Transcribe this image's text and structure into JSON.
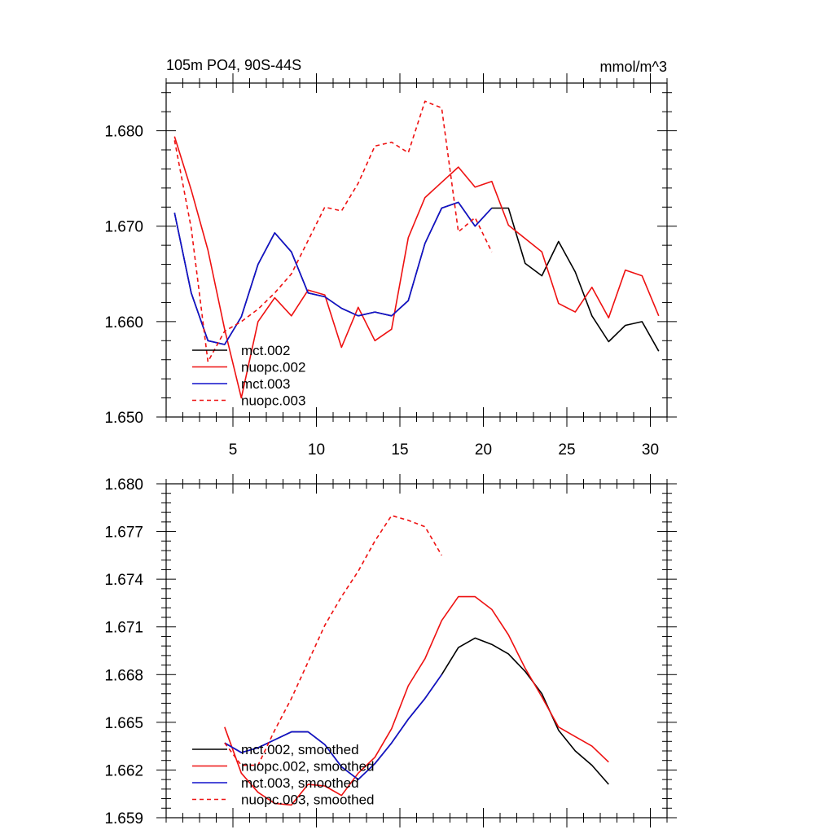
{
  "chart_data": [
    {
      "type": "line",
      "title": "105m PO4, 90S-44S",
      "units": "mmol/m^3",
      "xlim": [
        1,
        31
      ],
      "ylim": [
        1.65,
        1.685
      ],
      "x_ticks": [
        5,
        10,
        15,
        20,
        25,
        30
      ],
      "y_ticks": [
        1.65,
        1.66,
        1.67,
        1.68
      ],
      "y_tick_labels": [
        "1.650",
        "1.660",
        "1.670",
        "1.680"
      ],
      "legend_position": "bottom-left",
      "series": [
        {
          "name": "mct.002",
          "color": "#000000",
          "dash": "solid",
          "points": [
            [
              1.5,
              1.6714
            ],
            [
              2.5,
              1.663
            ],
            [
              3.5,
              1.658
            ],
            [
              4.5,
              1.6576
            ],
            [
              5.5,
              1.6605
            ],
            [
              6.5,
              1.666
            ],
            [
              7.5,
              1.6693
            ],
            [
              8.5,
              1.6673
            ],
            [
              9.5,
              1.663
            ],
            [
              10.5,
              1.6626
            ],
            [
              11.5,
              1.6614
            ],
            [
              12.5,
              1.6606
            ],
            [
              13.5,
              1.661
            ],
            [
              14.5,
              1.6606
            ],
            [
              15.5,
              1.6622
            ],
            [
              16.5,
              1.6682
            ],
            [
              17.5,
              1.6719
            ],
            [
              18.5,
              1.6725
            ],
            [
              19.5,
              1.67
            ],
            [
              20.5,
              1.6719
            ],
            [
              21.5,
              1.6719
            ],
            [
              22.5,
              1.6661
            ],
            [
              23.5,
              1.6648
            ],
            [
              24.5,
              1.6684
            ],
            [
              25.5,
              1.6652
            ],
            [
              26.5,
              1.6606
            ],
            [
              27.5,
              1.6579
            ],
            [
              28.5,
              1.6596
            ],
            [
              29.5,
              1.66
            ],
            [
              30.5,
              1.6569
            ]
          ]
        },
        {
          "name": "nuopc.002",
          "color": "#ee1111",
          "dash": "solid",
          "points": [
            [
              1.5,
              1.6794
            ],
            [
              2.5,
              1.6738
            ],
            [
              3.5,
              1.6675
            ],
            [
              4.5,
              1.6592
            ],
            [
              5.5,
              1.652
            ],
            [
              6.5,
              1.66
            ],
            [
              7.5,
              1.6625
            ],
            [
              8.5,
              1.6606
            ],
            [
              9.5,
              1.6633
            ],
            [
              10.5,
              1.6628
            ],
            [
              11.5,
              1.6573
            ],
            [
              12.5,
              1.6615
            ],
            [
              13.5,
              1.658
            ],
            [
              14.5,
              1.6592
            ],
            [
              15.5,
              1.6688
            ],
            [
              16.5,
              1.673
            ],
            [
              17.5,
              1.6746
            ],
            [
              18.5,
              1.6762
            ],
            [
              19.5,
              1.6741
            ],
            [
              20.5,
              1.6747
            ],
            [
              21.5,
              1.6701
            ],
            [
              22.5,
              1.6687
            ],
            [
              23.5,
              1.6673
            ],
            [
              24.5,
              1.6619
            ],
            [
              25.5,
              1.661
            ],
            [
              26.5,
              1.6636
            ],
            [
              27.5,
              1.6604
            ],
            [
              28.5,
              1.6654
            ],
            [
              29.5,
              1.6648
            ],
            [
              30.5,
              1.6606
            ]
          ]
        },
        {
          "name": "mct.003",
          "color": "#1111cc",
          "dash": "solid",
          "points": [
            [
              1.5,
              1.6714
            ],
            [
              2.5,
              1.663
            ],
            [
              3.5,
              1.658
            ],
            [
              4.5,
              1.6576
            ],
            [
              5.5,
              1.6605
            ],
            [
              6.5,
              1.666
            ],
            [
              7.5,
              1.6693
            ],
            [
              8.5,
              1.6673
            ],
            [
              9.5,
              1.663
            ],
            [
              10.5,
              1.6626
            ],
            [
              11.5,
              1.6614
            ],
            [
              12.5,
              1.6606
            ],
            [
              13.5,
              1.661
            ],
            [
              14.5,
              1.6606
            ],
            [
              15.5,
              1.6622
            ],
            [
              16.5,
              1.6682
            ],
            [
              17.5,
              1.6719
            ],
            [
              18.5,
              1.6725
            ],
            [
              19.5,
              1.67
            ],
            [
              20.5,
              1.6719
            ]
          ]
        },
        {
          "name": "nuopc.003",
          "color": "#ee1111",
          "dash": "dashed",
          "points": [
            [
              1.5,
              1.679
            ],
            [
              2.5,
              1.6698
            ],
            [
              3.5,
              1.6558
            ],
            [
              4.5,
              1.659
            ],
            [
              5.5,
              1.66
            ],
            [
              6.5,
              1.6613
            ],
            [
              7.5,
              1.663
            ],
            [
              8.5,
              1.665
            ],
            [
              9.5,
              1.6685
            ],
            [
              10.5,
              1.672
            ],
            [
              11.5,
              1.6716
            ],
            [
              12.5,
              1.6745
            ],
            [
              13.5,
              1.6784
            ],
            [
              14.5,
              1.6788
            ],
            [
              15.5,
              1.6777
            ],
            [
              16.5,
              1.6831
            ],
            [
              17.5,
              1.6824
            ],
            [
              18.5,
              1.6694
            ],
            [
              19.5,
              1.6709
            ],
            [
              20.5,
              1.6673
            ]
          ]
        }
      ]
    },
    {
      "type": "line",
      "xlim": [
        1,
        31
      ],
      "ylim": [
        1.659,
        1.68
      ],
      "x_ticks": [
        5,
        10,
        15,
        20,
        25,
        30
      ],
      "y_ticks": [
        1.659,
        1.662,
        1.665,
        1.668,
        1.671,
        1.674,
        1.677,
        1.68
      ],
      "y_tick_labels": [
        "1.659",
        "1.662",
        "1.665",
        "1.668",
        "1.671",
        "1.674",
        "1.677",
        "1.680"
      ],
      "legend_position": "bottom-left",
      "series": [
        {
          "name": "mct.002, smoothed",
          "color": "#000000",
          "dash": "solid",
          "points": [
            [
              4.5,
              1.6637
            ],
            [
              5.5,
              1.6631
            ],
            [
              6.5,
              1.6634
            ],
            [
              7.5,
              1.6639
            ],
            [
              8.5,
              1.6644
            ],
            [
              9.5,
              1.6644
            ],
            [
              10.5,
              1.6636
            ],
            [
              11.5,
              1.6622
            ],
            [
              12.5,
              1.6614
            ],
            [
              13.5,
              1.6624
            ],
            [
              14.5,
              1.6637
            ],
            [
              15.5,
              1.6652
            ],
            [
              16.5,
              1.6665
            ],
            [
              17.5,
              1.668
            ],
            [
              18.5,
              1.6697
            ],
            [
              19.5,
              1.6703
            ],
            [
              20.5,
              1.6699
            ],
            [
              21.5,
              1.6693
            ],
            [
              22.5,
              1.6682
            ],
            [
              23.5,
              1.6668
            ],
            [
              24.5,
              1.6645
            ],
            [
              25.5,
              1.6632
            ],
            [
              26.5,
              1.6623
            ],
            [
              27.5,
              1.6611
            ]
          ]
        },
        {
          "name": "nuopc.002, smoothed",
          "color": "#ee1111",
          "dash": "solid",
          "points": [
            [
              4.5,
              1.6647
            ],
            [
              5.5,
              1.6618
            ],
            [
              6.5,
              1.6606
            ],
            [
              7.5,
              1.6599
            ],
            [
              8.5,
              1.6598
            ],
            [
              9.5,
              1.6611
            ],
            [
              10.5,
              1.661
            ],
            [
              11.5,
              1.6604
            ],
            [
              12.5,
              1.6618
            ],
            [
              13.5,
              1.6628
            ],
            [
              14.5,
              1.6646
            ],
            [
              15.5,
              1.6673
            ],
            [
              16.5,
              1.669
            ],
            [
              17.5,
              1.6714
            ],
            [
              18.5,
              1.6729
            ],
            [
              19.5,
              1.6729
            ],
            [
              20.5,
              1.6721
            ],
            [
              21.5,
              1.6705
            ],
            [
              22.5,
              1.6684
            ],
            [
              23.5,
              1.6666
            ],
            [
              24.5,
              1.6647
            ],
            [
              25.5,
              1.6641
            ],
            [
              26.5,
              1.6635
            ],
            [
              27.5,
              1.6625
            ]
          ]
        },
        {
          "name": "mct.003, smoothed",
          "color": "#1111cc",
          "dash": "solid",
          "points": [
            [
              4.5,
              1.6637
            ],
            [
              5.5,
              1.6631
            ],
            [
              6.5,
              1.6634
            ],
            [
              7.5,
              1.6639
            ],
            [
              8.5,
              1.6644
            ],
            [
              9.5,
              1.6644
            ],
            [
              10.5,
              1.6636
            ],
            [
              11.5,
              1.6622
            ],
            [
              12.5,
              1.6614
            ],
            [
              13.5,
              1.6624
            ],
            [
              14.5,
              1.6637
            ],
            [
              15.5,
              1.6652
            ],
            [
              16.5,
              1.6665
            ],
            [
              17.5,
              1.668
            ]
          ]
        },
        {
          "name": "nuopc.003, smoothed",
          "color": "#ee1111",
          "dash": "dashed",
          "points": [
            [
              4.5,
              1.6637
            ],
            [
              5.5,
              1.6623
            ],
            [
              6.5,
              1.6623
            ],
            [
              7.5,
              1.6645
            ],
            [
              8.5,
              1.6665
            ],
            [
              9.5,
              1.6688
            ],
            [
              10.5,
              1.6711
            ],
            [
              11.5,
              1.6729
            ],
            [
              12.5,
              1.6745
            ],
            [
              13.5,
              1.6764
            ],
            [
              14.5,
              1.678
            ],
            [
              15.5,
              1.6777
            ],
            [
              16.5,
              1.6773
            ],
            [
              17.5,
              1.6755
            ]
          ]
        }
      ]
    }
  ]
}
